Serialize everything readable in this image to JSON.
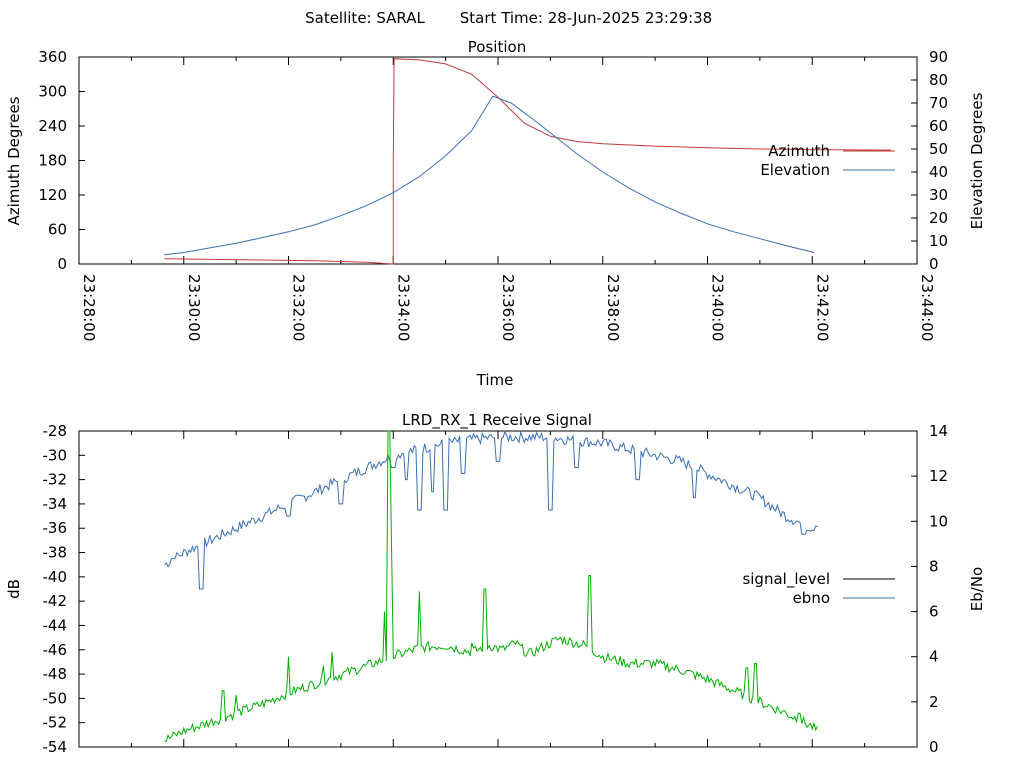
{
  "header": {
    "satellite": "Satellite: SARAL",
    "start_time": "Start Time: 28-Jun-2025 23:29:38"
  },
  "colors": {
    "azimuth": "#c0393b",
    "elevation": "#3a6fb5",
    "ebno": "#3a6fb5",
    "signal_level": "#00b000",
    "axis": "#000000",
    "legend_signal_line": "#000000"
  },
  "chart_data": [
    {
      "type": "line",
      "title": "Position",
      "xlabel": "Time",
      "ylabel": "Azimuth Degrees",
      "y2label": "Elevation Degrees",
      "xlim": [
        "23:28:00",
        "23:44:00"
      ],
      "xticks": [
        "23:28:00",
        "23:30:00",
        "23:32:00",
        "23:34:00",
        "23:36:00",
        "23:38:00",
        "23:40:00",
        "23:42:00",
        "23:44:00"
      ],
      "ylim": [
        0,
        360
      ],
      "yticks": [
        "0",
        "60",
        "120",
        "180",
        "240",
        "300",
        "360"
      ],
      "y2lim": [
        0,
        90
      ],
      "y2ticks": [
        "0",
        "10",
        "20",
        "30",
        "40",
        "50",
        "60",
        "70",
        "80",
        "90"
      ],
      "legend_position": "right",
      "grid": false,
      "series": [
        {
          "name": "Azimuth",
          "axis": "y",
          "points": [
            [
              "23:29:38",
              9
            ],
            [
              "23:30:30",
              8
            ],
            [
              "23:31:30",
              7
            ],
            [
              "23:32:30",
              5.5
            ],
            [
              "23:33:30",
              3
            ],
            [
              "23:34:00",
              0
            ],
            [
              "23:34:00",
              185
            ],
            [
              "23:34:01",
              357
            ],
            [
              "23:34:30",
              355
            ],
            [
              "23:35:00",
              348
            ],
            [
              "23:35:30",
              330
            ],
            [
              "23:36:00",
              290
            ],
            [
              "23:36:30",
              245
            ],
            [
              "23:37:00",
              222
            ],
            [
              "23:37:30",
              213
            ],
            [
              "23:38:00",
              209
            ],
            [
              "23:39:00",
              205
            ],
            [
              "23:40:00",
              202
            ],
            [
              "23:41:00",
              200
            ],
            [
              "23:42:00",
              199
            ],
            [
              "23:43:30",
              198
            ]
          ]
        },
        {
          "name": "Elevation",
          "axis": "y2",
          "points": [
            [
              "23:29:38",
              4
            ],
            [
              "23:30:00",
              5
            ],
            [
              "23:30:30",
              7
            ],
            [
              "23:31:00",
              9
            ],
            [
              "23:31:30",
              11.5
            ],
            [
              "23:32:00",
              14
            ],
            [
              "23:32:30",
              17
            ],
            [
              "23:33:00",
              21
            ],
            [
              "23:33:30",
              25.5
            ],
            [
              "23:34:00",
              31
            ],
            [
              "23:34:30",
              38
            ],
            [
              "23:35:00",
              47
            ],
            [
              "23:35:30",
              58
            ],
            [
              "23:35:54",
              73
            ],
            [
              "23:36:15",
              70
            ],
            [
              "23:36:40",
              63
            ],
            [
              "23:37:00",
              57
            ],
            [
              "23:37:30",
              48
            ],
            [
              "23:38:00",
              40
            ],
            [
              "23:38:30",
              33
            ],
            [
              "23:39:00",
              27
            ],
            [
              "23:39:30",
              22
            ],
            [
              "23:40:00",
              17.5
            ],
            [
              "23:40:30",
              14
            ],
            [
              "23:41:00",
              11
            ],
            [
              "23:41:30",
              8
            ],
            [
              "23:42:02",
              5
            ]
          ]
        }
      ]
    },
    {
      "type": "line",
      "title": "LRD_RX_1 Receive Signal",
      "xlabel": "",
      "ylabel": "dB",
      "y2label": "Eb/No",
      "xlim": [
        "23:28:00",
        "23:44:00"
      ],
      "ylim": [
        -54,
        -28
      ],
      "yticks": [
        "-28",
        "-30",
        "-32",
        "-34",
        "-36",
        "-38",
        "-40",
        "-42",
        "-44",
        "-46",
        "-48",
        "-50",
        "-52",
        "-54"
      ],
      "y2lim": [
        0,
        14
      ],
      "y2ticks": [
        "0",
        "2",
        "4",
        "6",
        "8",
        "10",
        "12",
        "14"
      ],
      "legend_position": "right",
      "grid": false,
      "legend": [
        "signal_level",
        "ebno"
      ],
      "series": [
        {
          "name": "ebno",
          "axis": "y",
          "points": [
            [
              "23:29:38",
              -39
            ],
            [
              "23:30:00",
              -38
            ],
            [
              "23:30:15",
              -37.5
            ],
            [
              "23:30:30",
              -37
            ],
            [
              "23:31:00",
              -36
            ],
            [
              "23:31:30",
              -35
            ],
            [
              "23:32:00",
              -34
            ],
            [
              "23:32:30",
              -33
            ],
            [
              "23:33:00",
              -32
            ],
            [
              "23:33:30",
              -31
            ],
            [
              "23:34:00",
              -30
            ],
            [
              "23:34:30",
              -29.5
            ],
            [
              "23:35:00",
              -29
            ],
            [
              "23:35:30",
              -28.7
            ],
            [
              "23:36:00",
              -28.5
            ],
            [
              "23:36:30",
              -28.5
            ],
            [
              "23:37:00",
              -28.5
            ],
            [
              "23:37:30",
              -28.8
            ],
            [
              "23:38:00",
              -29
            ],
            [
              "23:38:30",
              -29.5
            ],
            [
              "23:39:00",
              -30
            ],
            [
              "23:39:30",
              -30.5
            ],
            [
              "23:40:00",
              -31.5
            ],
            [
              "23:40:30",
              -32.5
            ],
            [
              "23:41:00",
              -33.5
            ],
            [
              "23:41:30",
              -35
            ],
            [
              "23:42:00",
              -36
            ],
            [
              "23:42:06",
              -35.5
            ]
          ],
          "dips": [
            [
              "23:29:48",
              -38.5
            ],
            [
              "23:30:20",
              -41
            ],
            [
              "23:32:00",
              -35
            ],
            [
              "23:33:00",
              -34
            ],
            [
              "23:34:00",
              -31
            ],
            [
              "23:34:15",
              -32
            ],
            [
              "23:34:30",
              -34.5
            ],
            [
              "23:34:45",
              -33
            ],
            [
              "23:35:00",
              -34.5
            ],
            [
              "23:35:20",
              -31.5
            ],
            [
              "23:36:00",
              -30.5
            ],
            [
              "23:37:00",
              -34.5
            ],
            [
              "23:37:30",
              -31
            ],
            [
              "23:38:40",
              -32
            ],
            [
              "23:39:45",
              -33.5
            ],
            [
              "23:41:50",
              -36.5
            ]
          ]
        },
        {
          "name": "signal_level",
          "axis": "y2",
          "points": [
            [
              "23:29:38",
              0.3
            ],
            [
              "23:30:00",
              0.7
            ],
            [
              "23:30:30",
              1.1
            ],
            [
              "23:31:00",
              1.5
            ],
            [
              "23:31:30",
              1.9
            ],
            [
              "23:32:00",
              2.4
            ],
            [
              "23:32:30",
              2.8
            ],
            [
              "23:33:00",
              3.2
            ],
            [
              "23:33:30",
              3.6
            ],
            [
              "23:34:00",
              4.0
            ],
            [
              "23:34:30",
              4.4
            ],
            [
              "23:35:00",
              4.5
            ],
            [
              "23:35:30",
              4.2
            ],
            [
              "23:35:50",
              4.5
            ],
            [
              "23:36:05",
              4.3
            ],
            [
              "23:36:20",
              4.6
            ],
            [
              "23:36:35",
              4.1
            ],
            [
              "23:36:50",
              4.4
            ],
            [
              "23:37:10",
              4.8
            ],
            [
              "23:37:40",
              4.5
            ],
            [
              "23:38:00",
              4.0
            ],
            [
              "23:38:30",
              3.7
            ],
            [
              "23:39:00",
              3.7
            ],
            [
              "23:39:30",
              3.4
            ],
            [
              "23:40:00",
              3.0
            ],
            [
              "23:40:30",
              2.5
            ],
            [
              "23:41:00",
              2.0
            ],
            [
              "23:41:30",
              1.5
            ],
            [
              "23:42:00",
              0.9
            ],
            [
              "23:42:06",
              0.7
            ]
          ],
          "spikes": [
            [
              "23:30:45",
              2.5
            ],
            [
              "23:31:00",
              2.3
            ],
            [
              "23:32:00",
              4.0
            ],
            [
              "23:32:40",
              3.6
            ],
            [
              "23:32:50",
              4.2
            ],
            [
              "23:33:50",
              6.0
            ],
            [
              "23:33:55",
              14.0
            ],
            [
              "23:33:58",
              9.0
            ],
            [
              "23:34:30",
              6.9
            ],
            [
              "23:35:30",
              4.6
            ],
            [
              "23:35:45",
              7.0
            ],
            [
              "23:37:45",
              7.6
            ],
            [
              "23:40:45",
              3.5
            ],
            [
              "23:40:55",
              3.7
            ],
            [
              "23:41:45",
              1.5
            ]
          ]
        }
      ]
    }
  ]
}
